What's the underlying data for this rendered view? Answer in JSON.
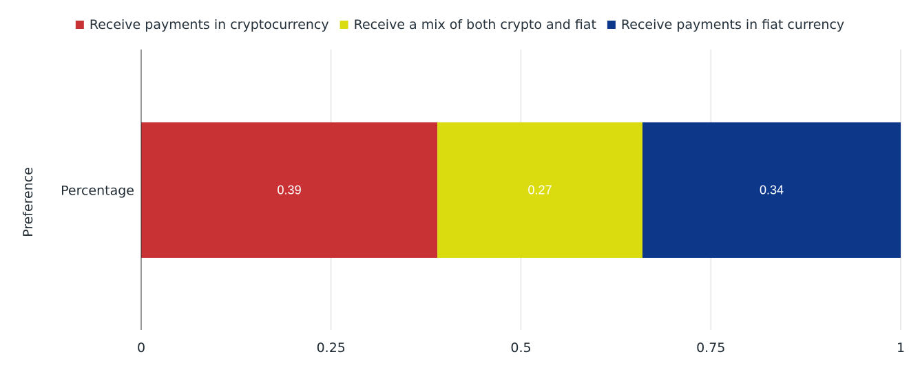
{
  "chart_data": {
    "type": "bar",
    "orientation": "horizontal",
    "stacked": true,
    "categories": [
      "Percentage"
    ],
    "series": [
      {
        "name": "Receive payments in cryptocurrency",
        "values": [
          0.39
        ],
        "color": "#c83235"
      },
      {
        "name": "Receive a mix of both crypto and fiat",
        "values": [
          0.27
        ],
        "color": "#dbdc10"
      },
      {
        "name": "Receive payments in fiat currency",
        "values": [
          0.34
        ],
        "color": "#0d388a"
      }
    ],
    "data_labels": [
      "0.39",
      "0.27",
      "0.34"
    ],
    "xlim": [
      0,
      1
    ],
    "xticks": [
      0,
      0.25,
      0.5,
      0.75,
      1
    ],
    "xtick_labels": [
      "0",
      "0.25",
      "0.5",
      "0.75",
      "1"
    ],
    "xlabel": "",
    "ylabel": "Preference",
    "title": "",
    "grid": true,
    "legend_position": "top"
  }
}
